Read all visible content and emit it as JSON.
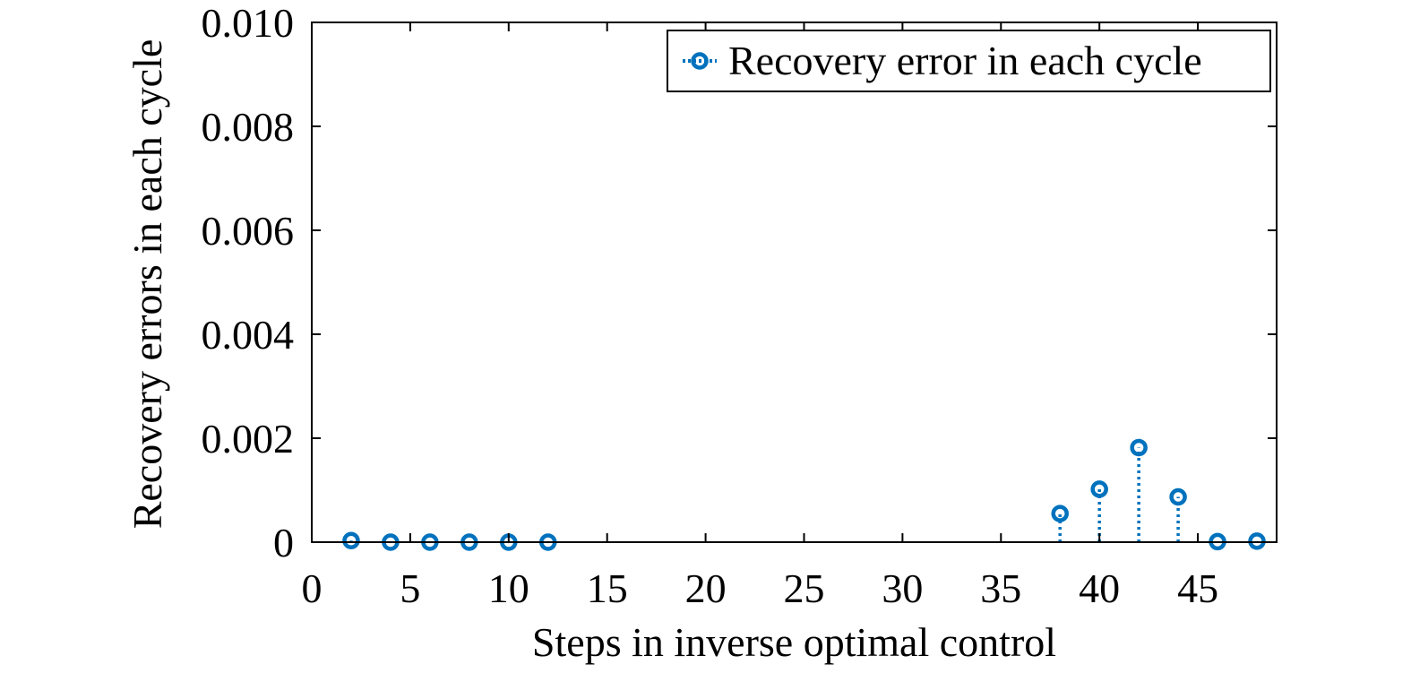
{
  "chart_data": {
    "type": "stem",
    "xlabel": "Steps in inverse optimal control",
    "ylabel": "Recovery errors in each cycle",
    "xlim": [
      0,
      49
    ],
    "ylim": [
      0,
      0.01
    ],
    "xticks": [
      0,
      5,
      10,
      15,
      20,
      25,
      30,
      35,
      40,
      45
    ],
    "xtick_labels": [
      "0",
      "5",
      "10",
      "15",
      "20",
      "25",
      "30",
      "35",
      "40",
      "45"
    ],
    "yticks": [
      0,
      0.002,
      0.004,
      0.006,
      0.008,
      0.01
    ],
    "ytick_labels": [
      "0",
      "0.002",
      "0.004",
      "0.006",
      "0.008",
      "0.010"
    ],
    "grid": false,
    "legend_position": "top-right",
    "series": [
      {
        "name": "Recovery error in each cycle",
        "color": "#0072BD",
        "marker": "circle",
        "line_style": "dotted",
        "x": [
          2,
          4,
          6,
          8,
          10,
          12,
          38,
          40,
          42,
          44,
          46,
          48
        ],
        "values": [
          3e-05,
          0.0,
          0.0,
          0.0,
          0.0,
          0.0,
          0.00055,
          0.00102,
          0.00182,
          0.00087,
          1e-05,
          2e-05
        ]
      }
    ]
  }
}
